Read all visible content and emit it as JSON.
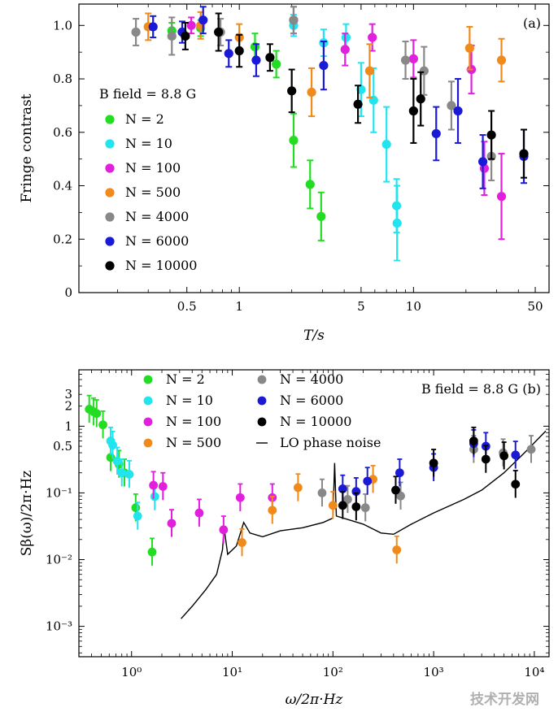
{
  "watermark": "技术开发网",
  "chart_data": [
    {
      "type": "scatter",
      "panel": "(a)",
      "title": "",
      "xlabel": "T/s",
      "ylabel": "Fringe contrast",
      "xscale": "log",
      "xlim": [
        0.12,
        60
      ],
      "ylim": [
        0,
        1.08
      ],
      "xticks": [
        0.5,
        1,
        5,
        10,
        50
      ],
      "xtick_labels": [
        "0.5",
        "1",
        "5",
        "10",
        "50"
      ],
      "yticks": [
        0,
        0.2,
        0.4,
        0.6,
        0.8,
        1.0
      ],
      "ytick_labels": [
        "0",
        "0.2",
        "0.4",
        "0.6",
        "0.8",
        "1.0"
      ],
      "legend_title": "B field = 8.8 G",
      "legend_position": "left",
      "series": [
        {
          "name": "N = 2",
          "color": "#22dd22",
          "points": [
            {
              "x": 0.41,
              "y": 0.98,
              "err": 0.03
            },
            {
              "x": 0.6,
              "y": 0.99,
              "err": 0.03
            },
            {
              "x": 1.23,
              "y": 0.92,
              "err": 0.05
            },
            {
              "x": 1.63,
              "y": 0.855,
              "err": 0.05
            },
            {
              "x": 2.05,
              "y": 0.57,
              "err": 0.1
            },
            {
              "x": 2.55,
              "y": 0.405,
              "err": 0.09
            },
            {
              "x": 2.95,
              "y": 0.285,
              "err": 0.09
            }
          ]
        },
        {
          "name": "N = 10",
          "color": "#22e4ee",
          "points": [
            {
              "x": 2.05,
              "y": 1.0,
              "err": 0.04
            },
            {
              "x": 3.05,
              "y": 0.935,
              "err": 0.05
            },
            {
              "x": 4.1,
              "y": 0.955,
              "err": 0.05
            },
            {
              "x": 5.0,
              "y": 0.76,
              "err": 0.1
            },
            {
              "x": 5.9,
              "y": 0.72,
              "err": 0.12
            },
            {
              "x": 7.0,
              "y": 0.555,
              "err": 0.14
            },
            {
              "x": 8.0,
              "y": 0.325,
              "err": 0.1
            },
            {
              "x": 8.05,
              "y": 0.26,
              "err": 0.14
            }
          ]
        },
        {
          "name": "N = 100",
          "color": "#e020dd",
          "points": [
            {
              "x": 0.53,
              "y": 1.0,
              "err": 0.03
            },
            {
              "x": 2.05,
              "y": 1.02,
              "err": 0.05
            },
            {
              "x": 4.05,
              "y": 0.91,
              "err": 0.06
            },
            {
              "x": 5.8,
              "y": 0.955,
              "err": 0.05
            },
            {
              "x": 10.0,
              "y": 0.875,
              "err": 0.07
            },
            {
              "x": 21.5,
              "y": 0.835,
              "err": 0.09
            },
            {
              "x": 25.5,
              "y": 0.465,
              "err": 0.1
            },
            {
              "x": 32.0,
              "y": 0.36,
              "err": 0.16
            }
          ]
        },
        {
          "name": "N = 500",
          "color": "#f08a1a",
          "points": [
            {
              "x": 0.3,
              "y": 0.995,
              "err": 0.05
            },
            {
              "x": 0.6,
              "y": 1.0,
              "err": 0.05
            },
            {
              "x": 1.0,
              "y": 0.955,
              "err": 0.05
            },
            {
              "x": 2.6,
              "y": 0.75,
              "err": 0.09
            },
            {
              "x": 5.6,
              "y": 0.83,
              "err": 0.1
            },
            {
              "x": 21.0,
              "y": 0.915,
              "err": 0.08
            },
            {
              "x": 32.0,
              "y": 0.87,
              "err": 0.08
            }
          ]
        },
        {
          "name": "N = 4000",
          "color": "#888888",
          "points": [
            {
              "x": 0.255,
              "y": 0.975,
              "err": 0.05
            },
            {
              "x": 0.41,
              "y": 0.96,
              "err": 0.07
            },
            {
              "x": 0.78,
              "y": 0.975,
              "err": 0.05
            },
            {
              "x": 2.05,
              "y": 1.02,
              "err": 0.05
            },
            {
              "x": 9.0,
              "y": 0.87,
              "err": 0.07
            },
            {
              "x": 11.5,
              "y": 0.83,
              "err": 0.09
            },
            {
              "x": 16.5,
              "y": 0.7,
              "err": 0.09
            },
            {
              "x": 28.0,
              "y": 0.51,
              "err": 0.09
            }
          ]
        },
        {
          "name": "N = 6000",
          "color": "#1a1ad6",
          "points": [
            {
              "x": 0.32,
              "y": 0.995,
              "err": 0.04
            },
            {
              "x": 0.47,
              "y": 0.975,
              "err": 0.04
            },
            {
              "x": 0.62,
              "y": 1.02,
              "err": 0.05
            },
            {
              "x": 0.87,
              "y": 0.895,
              "err": 0.05
            },
            {
              "x": 1.25,
              "y": 0.87,
              "err": 0.06
            },
            {
              "x": 3.05,
              "y": 0.85,
              "err": 0.09
            },
            {
              "x": 13.5,
              "y": 0.595,
              "err": 0.1
            },
            {
              "x": 18.0,
              "y": 0.68,
              "err": 0.12
            },
            {
              "x": 25.0,
              "y": 0.49,
              "err": 0.1
            },
            {
              "x": 43.0,
              "y": 0.51,
              "err": 0.1
            }
          ]
        },
        {
          "name": "N = 10000",
          "color": "#000000",
          "points": [
            {
              "x": 0.49,
              "y": 0.96,
              "err": 0.05
            },
            {
              "x": 0.76,
              "y": 0.975,
              "err": 0.07
            },
            {
              "x": 1.0,
              "y": 0.905,
              "err": 0.06
            },
            {
              "x": 1.5,
              "y": 0.88,
              "err": 0.05
            },
            {
              "x": 2.0,
              "y": 0.755,
              "err": 0.08
            },
            {
              "x": 4.8,
              "y": 0.705,
              "err": 0.07
            },
            {
              "x": 10.0,
              "y": 0.68,
              "err": 0.12
            },
            {
              "x": 11.0,
              "y": 0.725,
              "err": 0.1
            },
            {
              "x": 28.0,
              "y": 0.59,
              "err": 0.09
            },
            {
              "x": 43.0,
              "y": 0.52,
              "err": 0.09
            }
          ]
        }
      ]
    },
    {
      "type": "scatter",
      "panel": "(b)",
      "title": "",
      "xlabel": "ω/2π·Hz",
      "ylabel": "Sβ(ω)/2π·Hz",
      "xscale": "log",
      "yscale": "log",
      "xlim": [
        0.3,
        14000
      ],
      "ylim": [
        0.00035,
        7
      ],
      "xtick_labels": [
        "10⁰",
        "10¹",
        "10²",
        "10³",
        "10⁴"
      ],
      "xticks": [
        1,
        10,
        100,
        1000,
        10000
      ],
      "ytick_labels": [
        "3",
        "2",
        "1",
        "0.5",
        "10⁻¹",
        "10⁻²",
        "10⁻³"
      ],
      "yticks": [
        3,
        2,
        1,
        0.5,
        0.1,
        0.01,
        0.001
      ],
      "annotation": "B field = 8.8 G (b)",
      "legend_position": "top",
      "series": [
        {
          "name": "N = 2",
          "color": "#22dd22",
          "points": [
            {
              "x": 0.38,
              "y": 1.8
            },
            {
              "x": 0.42,
              "y": 1.65
            },
            {
              "x": 0.45,
              "y": 1.55
            },
            {
              "x": 0.52,
              "y": 1.05
            },
            {
              "x": 0.62,
              "y": 0.34
            },
            {
              "x": 0.75,
              "y": 0.27
            },
            {
              "x": 0.85,
              "y": 0.2
            },
            {
              "x": 1.1,
              "y": 0.06
            },
            {
              "x": 1.6,
              "y": 0.013
            }
          ]
        },
        {
          "name": "N = 10",
          "color": "#22e4ee",
          "points": [
            {
              "x": 0.62,
              "y": 0.6
            },
            {
              "x": 0.65,
              "y": 0.52
            },
            {
              "x": 0.72,
              "y": 0.3
            },
            {
              "x": 0.8,
              "y": 0.2
            },
            {
              "x": 0.95,
              "y": 0.19
            },
            {
              "x": 1.15,
              "y": 0.045
            },
            {
              "x": 1.7,
              "y": 0.088
            }
          ]
        },
        {
          "name": "N = 100",
          "color": "#e020dd",
          "points": [
            {
              "x": 1.65,
              "y": 0.13
            },
            {
              "x": 2.05,
              "y": 0.125
            },
            {
              "x": 2.5,
              "y": 0.035
            },
            {
              "x": 4.7,
              "y": 0.05
            },
            {
              "x": 8.2,
              "y": 0.028
            },
            {
              "x": 12.0,
              "y": 0.085
            },
            {
              "x": 25.0,
              "y": 0.085
            }
          ]
        },
        {
          "name": "N = 500",
          "color": "#f08a1a",
          "points": [
            {
              "x": 12.5,
              "y": 0.018
            },
            {
              "x": 25.0,
              "y": 0.055
            },
            {
              "x": 45.0,
              "y": 0.12
            },
            {
              "x": 100.0,
              "y": 0.065
            },
            {
              "x": 250.0,
              "y": 0.16
            },
            {
              "x": 430.0,
              "y": 0.014
            }
          ]
        },
        {
          "name": "N = 4000",
          "color": "#888888",
          "points": [
            {
              "x": 78.0,
              "y": 0.1
            },
            {
              "x": 140.0,
              "y": 0.08
            },
            {
              "x": 210.0,
              "y": 0.06
            },
            {
              "x": 470.0,
              "y": 0.09
            },
            {
              "x": 2500.0,
              "y": 0.45
            },
            {
              "x": 4900.0,
              "y": 0.4
            },
            {
              "x": 9300.0,
              "y": 0.45
            }
          ]
        },
        {
          "name": "N = 6000",
          "color": "#1a1ad6",
          "points": [
            {
              "x": 125.0,
              "y": 0.115
            },
            {
              "x": 170.0,
              "y": 0.105
            },
            {
              "x": 220.0,
              "y": 0.15
            },
            {
              "x": 460.0,
              "y": 0.2
            },
            {
              "x": 1000.0,
              "y": 0.24
            },
            {
              "x": 2500.0,
              "y": 0.55
            },
            {
              "x": 3300.0,
              "y": 0.5
            },
            {
              "x": 6500.0,
              "y": 0.37
            }
          ]
        },
        {
          "name": "N = 10000",
          "color": "#000000",
          "points": [
            {
              "x": 125.0,
              "y": 0.065
            },
            {
              "x": 170.0,
              "y": 0.062
            },
            {
              "x": 420.0,
              "y": 0.11
            },
            {
              "x": 1000.0,
              "y": 0.28
            },
            {
              "x": 2500.0,
              "y": 0.6
            },
            {
              "x": 3300.0,
              "y": 0.32
            },
            {
              "x": 5000.0,
              "y": 0.36
            },
            {
              "x": 6500.0,
              "y": 0.135
            }
          ]
        },
        {
          "name": "LO phase noise",
          "color": "#000000",
          "style": "line",
          "points": [
            {
              "x": 3.1,
              "y": 0.0013
            },
            {
              "x": 4.0,
              "y": 0.002
            },
            {
              "x": 5.5,
              "y": 0.0036
            },
            {
              "x": 7.0,
              "y": 0.006
            },
            {
              "x": 8.0,
              "y": 0.014
            },
            {
              "x": 8.3,
              "y": 0.03
            },
            {
              "x": 9.0,
              "y": 0.012
            },
            {
              "x": 11.0,
              "y": 0.016
            },
            {
              "x": 13.0,
              "y": 0.036
            },
            {
              "x": 15.0,
              "y": 0.025
            },
            {
              "x": 20.0,
              "y": 0.022
            },
            {
              "x": 30.0,
              "y": 0.027
            },
            {
              "x": 50.0,
              "y": 0.03
            },
            {
              "x": 80.0,
              "y": 0.036
            },
            {
              "x": 100.0,
              "y": 0.042
            },
            {
              "x": 104.0,
              "y": 0.28
            },
            {
              "x": 108.0,
              "y": 0.045
            },
            {
              "x": 200.0,
              "y": 0.034
            },
            {
              "x": 300.0,
              "y": 0.025
            },
            {
              "x": 400.0,
              "y": 0.024
            },
            {
              "x": 600.0,
              "y": 0.034
            },
            {
              "x": 1000.0,
              "y": 0.05
            },
            {
              "x": 2000.0,
              "y": 0.08
            },
            {
              "x": 3000.0,
              "y": 0.11
            },
            {
              "x": 5000.0,
              "y": 0.2
            },
            {
              "x": 8000.0,
              "y": 0.4
            },
            {
              "x": 13000.0,
              "y": 0.85
            }
          ]
        }
      ]
    }
  ]
}
